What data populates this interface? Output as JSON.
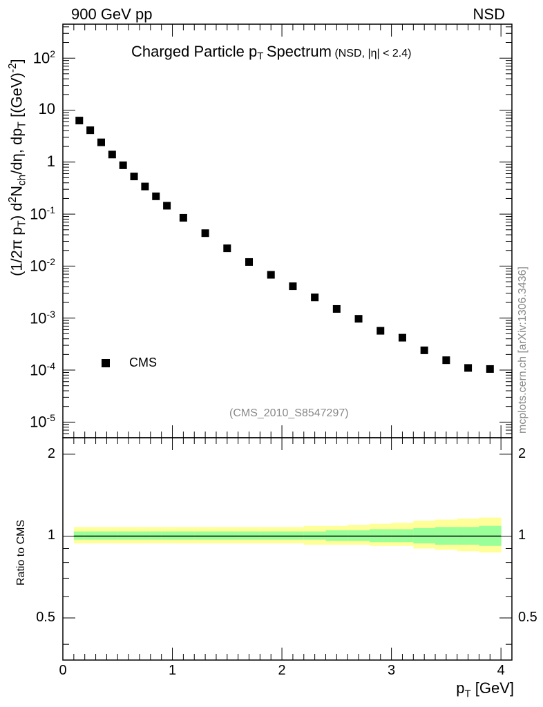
{
  "header": {
    "left_label": "900 GeV pp",
    "right_label": "NSD"
  },
  "watermark": "(CMS_2010_S8547297)",
  "side_credit": "mcplots.cern.ch [arXiv:1306.3436]",
  "chart_data": [
    {
      "type": "scatter",
      "title": "Charged Particle p",
      "title_subscript": "T",
      "title_word": "Spectrum",
      "title_qualifier": "(NSD, |η| < 2.4)",
      "ylabel": "(1/2π p_T) d²N_ch/dη, dp_T [(GeV)^-2]",
      "ylabel_parts": {
        "prefix": "(1/2π p",
        "sub_t1": "T",
        "mid1": ") d",
        "sup_2": "2",
        "mid2": "N",
        "sub_ch": "ch",
        "mid3": "/dη, dp",
        "sub_t2": "T",
        "mid4": " [(GeV)",
        "sup_m2": "-2",
        "suffix": "]"
      },
      "yscale": "log",
      "ylim": [
        5e-06,
        450
      ],
      "xlim": [
        0,
        4.1
      ],
      "y_ticks": [
        {
          "value": 1e-05,
          "base": "10",
          "exp": "-5"
        },
        {
          "value": 0.0001,
          "base": "10",
          "exp": "-4"
        },
        {
          "value": 0.001,
          "base": "10",
          "exp": "-3"
        },
        {
          "value": 0.01,
          "base": "10",
          "exp": "-2"
        },
        {
          "value": 0.1,
          "base": "10",
          "exp": "-1"
        },
        {
          "value": 1,
          "base": "1",
          "exp": ""
        },
        {
          "value": 10,
          "base": "10",
          "exp": ""
        },
        {
          "value": 100,
          "base": "10",
          "exp": "2"
        }
      ],
      "legend": [
        {
          "label": "CMS",
          "marker": "square",
          "color": "#000000",
          "position": "bottom-left"
        }
      ],
      "series": [
        {
          "name": "CMS",
          "x": [
            0.15,
            0.25,
            0.35,
            0.45,
            0.55,
            0.65,
            0.75,
            0.85,
            0.95,
            1.1,
            1.3,
            1.5,
            1.7,
            1.9,
            2.1,
            2.3,
            2.5,
            2.7,
            2.9,
            3.1,
            3.3,
            3.5,
            3.7,
            3.9
          ],
          "y": [
            6.3,
            4.1,
            2.4,
            1.4,
            0.87,
            0.53,
            0.34,
            0.22,
            0.145,
            0.085,
            0.043,
            0.022,
            0.012,
            0.0068,
            0.0041,
            0.0025,
            0.0015,
            0.00097,
            0.00057,
            0.00042,
            0.00024,
            0.000155,
            0.00011,
            0.000105
          ]
        }
      ]
    },
    {
      "type": "area",
      "ylabel": "Ratio to CMS",
      "xlabel": "p",
      "xlabel_subscript": "T",
      "xlabel_unit": "[GeV]",
      "xlim": [
        0,
        4.1
      ],
      "ylim": [
        0.35,
        2.3
      ],
      "yscale": "log",
      "x_ticks": [
        0,
        1,
        2,
        3,
        4
      ],
      "x_tick_labels": [
        "0",
        "1",
        "2",
        "3",
        "4"
      ],
      "y_ticks": [
        0.5,
        1,
        2
      ],
      "y_tick_labels": [
        "0.5",
        "1",
        "2"
      ],
      "reference_line": 1,
      "bands": {
        "x_edges": [
          0.1,
          0.2,
          0.3,
          0.4,
          0.5,
          0.6,
          0.7,
          0.8,
          0.9,
          1.0,
          1.2,
          1.4,
          1.6,
          1.8,
          2.0,
          2.2,
          2.4,
          2.6,
          2.8,
          3.0,
          3.2,
          3.4,
          3.6,
          3.8,
          4.0
        ],
        "outer_color": "#ffff99",
        "inner_color": "#99ff99",
        "outer_low": [
          0.94,
          0.94,
          0.94,
          0.94,
          0.94,
          0.94,
          0.94,
          0.94,
          0.94,
          0.94,
          0.94,
          0.94,
          0.94,
          0.94,
          0.94,
          0.93,
          0.93,
          0.93,
          0.92,
          0.92,
          0.9,
          0.89,
          0.88,
          0.87
        ],
        "outer_high": [
          1.08,
          1.08,
          1.08,
          1.08,
          1.08,
          1.08,
          1.08,
          1.08,
          1.08,
          1.08,
          1.08,
          1.08,
          1.08,
          1.08,
          1.08,
          1.09,
          1.09,
          1.1,
          1.11,
          1.12,
          1.14,
          1.15,
          1.16,
          1.17
        ],
        "inner_low": [
          0.97,
          0.97,
          0.97,
          0.97,
          0.97,
          0.97,
          0.97,
          0.97,
          0.97,
          0.97,
          0.97,
          0.97,
          0.97,
          0.97,
          0.97,
          0.97,
          0.96,
          0.96,
          0.95,
          0.95,
          0.94,
          0.93,
          0.93,
          0.92
        ],
        "inner_high": [
          1.04,
          1.04,
          1.04,
          1.04,
          1.04,
          1.04,
          1.04,
          1.04,
          1.04,
          1.04,
          1.04,
          1.04,
          1.04,
          1.04,
          1.04,
          1.04,
          1.05,
          1.05,
          1.06,
          1.06,
          1.07,
          1.08,
          1.08,
          1.09
        ]
      }
    }
  ]
}
